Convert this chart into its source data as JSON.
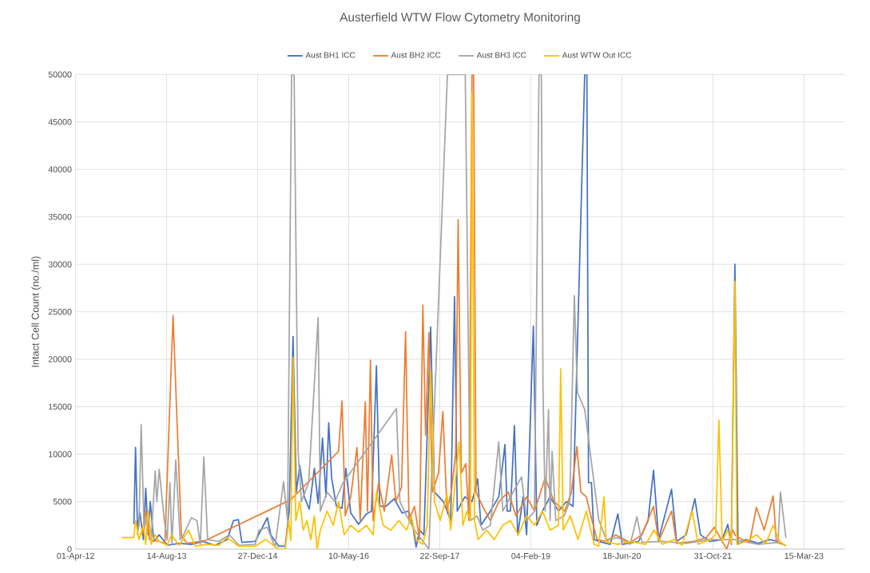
{
  "chart_data": {
    "type": "line",
    "title": "Austerfield WTW Flow Cytometry Monitoring",
    "ylabel": "Intact Cell Count (no./ml)",
    "xlim": [
      "2012-04-01",
      "2023-10-25"
    ],
    "ylim": [
      0,
      50000
    ],
    "xticks": [
      {
        "value": "2012-04-01",
        "label": "01-Apr-12"
      },
      {
        "value": "2013-08-14",
        "label": "14-Aug-13"
      },
      {
        "value": "2014-12-27",
        "label": "27-Dec-14"
      },
      {
        "value": "2016-05-10",
        "label": "10-May-16"
      },
      {
        "value": "2017-09-22",
        "label": "22-Sep-17"
      },
      {
        "value": "2019-02-04",
        "label": "04-Feb-19"
      },
      {
        "value": "2020-06-18",
        "label": "18-Jun-20"
      },
      {
        "value": "2021-10-31",
        "label": "31-Oct-21"
      },
      {
        "value": "2023-03-15",
        "label": "15-Mar-23"
      }
    ],
    "yticks": [
      0,
      5000,
      10000,
      15000,
      20000,
      25000,
      30000,
      35000,
      40000,
      45000,
      50000
    ],
    "grid": true,
    "legend": "top",
    "series": [
      {
        "name": "Aust BH1 ICC",
        "color": "#4472c4",
        "x": [
          "2013-02-15",
          "2013-02-24",
          "2013-03-07",
          "2013-03-20",
          "2013-04-08",
          "2013-04-21",
          "2013-05-04",
          "2013-05-16",
          "2013-06-04",
          "2013-07-04",
          "2013-08-17",
          "2013-10-22",
          "2013-12-28",
          "2014-03-01",
          "2014-05-07",
          "2014-07-12",
          "2014-08-16",
          "2014-09-12",
          "2014-10-01",
          "2014-12-13",
          "2015-02-18",
          "2015-03-09",
          "2015-04-21",
          "2015-05-27",
          "2015-06-18",
          "2015-07-09",
          "2015-07-27",
          "2015-08-15",
          "2015-09-09",
          "2015-10-06",
          "2015-11-03",
          "2015-11-24",
          "2015-12-18",
          "2016-01-06",
          "2016-01-21",
          "2016-02-06",
          "2016-03-03",
          "2016-04-03",
          "2016-04-24",
          "2016-05-21",
          "2016-07-03",
          "2016-08-15",
          "2016-09-12",
          "2016-10-09",
          "2016-10-27",
          "2016-12-01",
          "2017-01-15",
          "2017-02-27",
          "2017-04-03",
          "2017-04-27",
          "2017-05-15",
          "2017-06-03",
          "2017-06-27",
          "2017-08-03",
          "2017-08-24",
          "2017-10-12",
          "2017-11-21",
          "2017-12-12",
          "2017-12-27",
          "2018-02-06",
          "2018-03-18",
          "2018-04-18",
          "2018-05-06",
          "2018-06-27",
          "2018-08-12",
          "2018-09-15",
          "2018-09-27",
          "2018-10-15",
          "2018-11-06",
          "2018-11-24",
          "2018-12-24",
          "2019-01-12",
          "2019-02-18",
          "2019-03-09",
          "2019-04-09",
          "2019-05-21",
          "2019-07-06",
          "2019-08-18",
          "2019-09-24",
          "2019-11-27",
          "2019-12-09",
          "2019-12-18",
          "2020-01-03",
          "2020-01-18",
          "2020-03-03",
          "2020-04-15",
          "2020-05-27",
          "2020-06-21",
          "2020-09-18",
          "2020-11-09",
          "2020-12-09",
          "2021-01-06",
          "2021-03-18",
          "2021-04-15",
          "2021-06-06",
          "2021-07-24",
          "2021-08-24",
          "2021-10-15",
          "2021-12-21",
          "2022-01-21",
          "2022-02-09",
          "2022-03-01",
          "2022-03-18",
          "2022-05-01",
          "2022-07-06",
          "2022-09-09",
          "2022-10-24"
        ],
        "values": [
          2600,
          10700,
          2000,
          3800,
          1000,
          6400,
          1500,
          5000,
          800,
          1500,
          400,
          600,
          500,
          800,
          400,
          1000,
          3000,
          3100,
          700,
          800,
          3300,
          1500,
          300,
          300,
          4000,
          22400,
          6000,
          8800,
          5500,
          4200,
          8500,
          4800,
          11700,
          5500,
          13300,
          7500,
          4500,
          4300,
          8500,
          3800,
          2600,
          3700,
          4000,
          19300,
          4500,
          4500,
          5300,
          3800,
          4000,
          2500,
          200,
          2000,
          1500,
          23400,
          6000,
          5000,
          3000,
          26600,
          4000,
          5500,
          5000,
          7400,
          2500,
          4000,
          5500,
          11000,
          4000,
          4000,
          13000,
          1500,
          5500,
          1500,
          23500,
          2500,
          4000,
          5500,
          4000,
          5000,
          4500,
          50000,
          50000,
          7000,
          7000,
          1000,
          700,
          500,
          3700,
          500,
          800,
          3000,
          8300,
          1000,
          6300,
          800,
          1500,
          5300,
          1500,
          800,
          1000,
          2600,
          500,
          30000,
          500,
          1000,
          600,
          1000,
          800
        ]
      },
      {
        "name": "Aust BH2 ICC",
        "color": "#ed7d31",
        "x": [
          "2013-04-01",
          "2013-04-21",
          "2013-05-12",
          "2013-07-04",
          "2013-08-04",
          "2013-09-18",
          "2013-11-03",
          "2013-12-03",
          "2014-02-09",
          "2014-03-15",
          "2015-06-27",
          "2016-03-15",
          "2016-04-03",
          "2016-04-21",
          "2016-05-21",
          "2016-06-24",
          "2016-07-12",
          "2016-08-09",
          "2016-08-21",
          "2016-09-06",
          "2016-09-21",
          "2016-10-21",
          "2016-11-21",
          "2017-01-01",
          "2017-01-24",
          "2017-02-24",
          "2017-03-18",
          "2017-04-06",
          "2017-05-06",
          "2017-06-03",
          "2017-06-21",
          "2017-07-06",
          "2017-07-24",
          "2017-08-12",
          "2017-09-15",
          "2017-10-09",
          "2017-11-01",
          "2017-11-24",
          "2017-12-18",
          "2018-01-01",
          "2018-01-18",
          "2018-02-12",
          "2018-03-01",
          "2018-03-18",
          "2018-03-27",
          "2018-04-09",
          "2018-05-15",
          "2018-06-27",
          "2018-08-12",
          "2018-10-03",
          "2018-11-15",
          "2019-01-12",
          "2019-02-24",
          "2019-04-24",
          "2019-06-12",
          "2019-08-09",
          "2019-09-15",
          "2019-10-15",
          "2019-11-06",
          "2019-12-06",
          "2020-01-06",
          "2020-02-03",
          "2020-03-24",
          "2020-05-15",
          "2020-08-03",
          "2020-10-06",
          "2020-12-09",
          "2021-01-06",
          "2021-03-18",
          "2021-04-15",
          "2021-07-18",
          "2021-09-24",
          "2021-11-09",
          "2021-12-21",
          "2022-01-15",
          "2022-02-18",
          "2022-03-01",
          "2022-04-09",
          "2022-05-21",
          "2022-06-27",
          "2022-08-09",
          "2022-09-27",
          "2022-10-15",
          "2022-12-06"
        ],
        "values": [
          1500,
          4000,
          1000,
          800,
          600,
          24600,
          1400,
          600,
          800,
          900,
          5200,
          10300,
          15600,
          3500,
          5500,
          10700,
          3000,
          15500,
          4000,
          19900,
          3000,
          7000,
          4000,
          9900,
          5000,
          6500,
          22900,
          3000,
          4500,
          1000,
          25700,
          12000,
          22800,
          6000,
          8000,
          14500,
          4000,
          6000,
          10000,
          34700,
          8000,
          9000,
          3000,
          50000,
          50000,
          6000,
          4500,
          3000,
          5000,
          6000,
          3500,
          5500,
          4000,
          7500,
          5000,
          4000,
          6000,
          10800,
          6000,
          5500,
          3000,
          1000,
          800,
          1500,
          700,
          1500,
          4500,
          800,
          4000,
          600,
          800,
          1200,
          2300,
          800,
          0,
          2000,
          1500,
          1000,
          700,
          4400,
          2000,
          5600,
          700,
          400
        ]
      },
      {
        "name": "Aust BH3 ICC",
        "color": "#a5a5a5",
        "x": [
          "2013-03-05",
          "2013-03-15",
          "2013-03-27",
          "2013-04-12",
          "2013-05-04",
          "2013-05-21",
          "2013-06-12",
          "2013-06-21",
          "2013-07-04",
          "2013-08-01",
          "2013-08-17",
          "2013-09-01",
          "2013-09-12",
          "2013-10-03",
          "2013-10-27",
          "2013-11-12",
          "2013-12-28",
          "2014-01-27",
          "2014-02-15",
          "2014-03-06",
          "2014-03-27",
          "2014-05-27",
          "2014-07-24",
          "2014-09-15",
          "2014-12-13",
          "2015-01-03",
          "2015-02-18",
          "2015-04-01",
          "2015-05-18",
          "2015-06-09",
          "2015-07-01",
          "2015-07-15",
          "2015-08-06",
          "2015-08-24",
          "2015-10-03",
          "2015-11-24",
          "2015-12-06",
          "2016-01-12",
          "2016-02-24",
          "2016-04-09",
          "2017-01-27",
          "2017-02-15",
          "2017-03-24",
          "2017-05-06",
          "2017-07-24",
          "2017-11-03",
          "2018-02-09",
          "2018-03-09",
          "2018-04-15",
          "2018-05-15",
          "2018-06-27",
          "2018-08-12",
          "2018-09-03",
          "2018-10-15",
          "2018-12-15",
          "2019-01-12",
          "2019-02-24",
          "2019-03-21",
          "2019-04-03",
          "2019-04-12",
          "2019-04-24",
          "2019-05-12",
          "2019-05-21",
          "2019-06-01",
          "2019-06-21",
          "2019-08-06",
          "2019-09-06",
          "2019-10-01",
          "2019-10-18",
          "2019-11-27",
          "2020-02-12",
          "2020-03-24",
          "2020-05-27",
          "2020-08-03",
          "2020-09-09",
          "2020-10-06",
          "2021-01-27",
          "2021-06-06",
          "2021-10-15",
          "2022-02-27",
          "2022-07-06",
          "2022-10-24",
          "2022-11-06",
          "2022-12-06"
        ],
        "values": [
          1500,
          2500,
          13100,
          2000,
          4000,
          1000,
          8200,
          5000,
          8400,
          3000,
          1000,
          7000,
          500,
          9400,
          1000,
          1400,
          3300,
          3000,
          500,
          9700,
          1000,
          800,
          1500,
          400,
          500,
          2000,
          2300,
          200,
          7100,
          3000,
          50000,
          50000,
          10300,
          5000,
          7000,
          24400,
          4000,
          6000,
          5000,
          7000,
          14800,
          5000,
          3500,
          2000,
          0,
          50000,
          50000,
          3000,
          3500,
          2000,
          2500,
          11300,
          4000,
          5500,
          7600,
          3000,
          4000,
          50000,
          50000,
          16900,
          4000,
          14700,
          3000,
          10300,
          3000,
          3500,
          5000,
          26700,
          16500,
          14700,
          3100,
          1000,
          1200,
          500,
          3400,
          700,
          800,
          600,
          1000,
          1000,
          500,
          700,
          6000,
          1200
        ]
      },
      {
        "name": "Aust WTW Out ICC",
        "color": "#ffc000",
        "x": [
          "2012-12-09",
          "2013-02-15",
          "2013-02-24",
          "2013-03-15",
          "2013-04-08",
          "2013-04-21",
          "2013-05-04",
          "2013-05-21",
          "2013-06-12",
          "2013-07-04",
          "2013-08-17",
          "2013-09-09",
          "2013-10-22",
          "2013-12-12",
          "2014-01-18",
          "2014-03-24",
          "2014-05-27",
          "2014-07-12",
          "2014-09-15",
          "2014-12-13",
          "2015-02-09",
          "2015-03-09",
          "2015-04-21",
          "2015-05-27",
          "2015-06-15",
          "2015-06-27",
          "2015-07-09",
          "2015-07-24",
          "2015-08-15",
          "2015-09-03",
          "2015-09-24",
          "2015-10-15",
          "2015-11-03",
          "2015-11-18",
          "2015-12-06",
          "2016-01-12",
          "2016-02-15",
          "2016-03-15",
          "2016-04-15",
          "2016-05-21",
          "2016-07-03",
          "2016-08-15",
          "2016-09-21",
          "2016-10-09",
          "2016-11-15",
          "2016-12-27",
          "2017-02-09",
          "2017-03-24",
          "2017-04-18",
          "2017-05-15",
          "2017-06-21",
          "2017-07-15",
          "2017-08-03",
          "2017-08-24",
          "2017-09-24",
          "2017-11-01",
          "2017-11-21",
          "2018-01-06",
          "2018-01-27",
          "2018-02-18",
          "2018-03-09",
          "2018-03-18",
          "2018-04-01",
          "2018-04-21",
          "2018-06-06",
          "2018-07-18",
          "2018-09-03",
          "2018-10-15",
          "2018-11-27",
          "2019-01-12",
          "2019-02-24",
          "2019-04-09",
          "2019-05-21",
          "2019-07-06",
          "2019-07-18",
          "2019-08-01",
          "2019-09-09",
          "2019-10-21",
          "2019-12-06",
          "2020-01-18",
          "2020-02-12",
          "2020-03-12",
          "2020-03-24",
          "2020-05-27",
          "2020-08-03",
          "2020-10-27",
          "2020-12-12",
          "2021-01-27",
          "2021-04-01",
          "2021-05-15",
          "2021-07-09",
          "2021-08-12",
          "2021-10-15",
          "2021-11-15",
          "2021-12-03",
          "2021-12-21",
          "2022-01-21",
          "2022-02-09",
          "2022-03-01",
          "2022-03-12",
          "2022-05-01",
          "2022-06-27",
          "2022-08-18",
          "2022-09-27",
          "2022-11-03",
          "2022-12-06"
        ],
        "values": [
          1200,
          1200,
          3000,
          1000,
          2500,
          500,
          4000,
          500,
          1500,
          800,
          400,
          1500,
          400,
          2000,
          300,
          500,
          400,
          1200,
          300,
          300,
          1000,
          600,
          0,
          0,
          3000,
          900,
          20200,
          3000,
          5000,
          2000,
          3000,
          1000,
          3500,
          0,
          2000,
          4000,
          2500,
          5000,
          1500,
          2500,
          1800,
          2500,
          1500,
          6000,
          2500,
          2000,
          3000,
          2000,
          3500,
          1000,
          500,
          2500,
          18800,
          5000,
          3000,
          5800,
          2000,
          11300,
          2500,
          4000,
          3000,
          48100,
          3000,
          1000,
          2000,
          1000,
          2500,
          3000,
          1500,
          3500,
          2500,
          4000,
          2000,
          2500,
          19000,
          2000,
          3500,
          1000,
          4000,
          500,
          300,
          5500,
          800,
          500,
          800,
          500,
          2000,
          500,
          1000,
          400,
          4000,
          500,
          1000,
          1500,
          13600,
          800,
          2000,
          600,
          28200,
          500,
          800,
          1500,
          600,
          2500,
          800,
          300
        ]
      }
    ]
  }
}
